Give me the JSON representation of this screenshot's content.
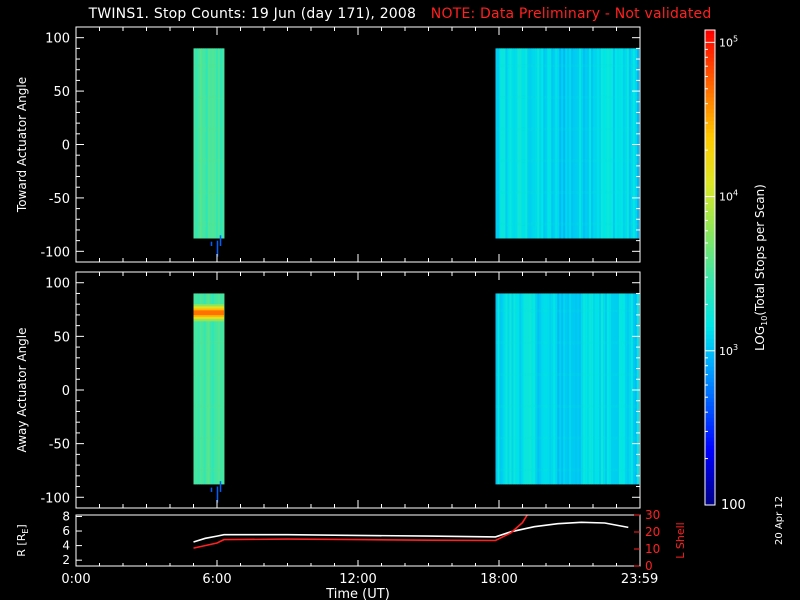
{
  "title": {
    "main": "TWINS1. Stop Counts: 19 Jun (day 171), 2008",
    "note": "NOTE: Data Preliminary - Not validated"
  },
  "date_stamp": "20 Apr 12",
  "colors": {
    "background": "#000000",
    "note": "#ff2020",
    "axis": "#ffffff",
    "lshell_line": "#ff2020",
    "r_line": "#ffffff"
  },
  "chart_data": [
    {
      "type": "heatmap",
      "name": "toward",
      "ylabel": "Toward Actuator Angle",
      "ylim": [
        -110,
        110
      ],
      "yticks": [
        100,
        50,
        0,
        -50,
        -100
      ],
      "ytick_labels": [
        "100",
        "50",
        "0",
        "-50",
        "-100"
      ],
      "xlim_hours": [
        0,
        24
      ],
      "angle_range": [
        -88,
        90
      ],
      "blocks": [
        {
          "start_hour": 5.0,
          "end_hour": 6.3,
          "base_level": 3.48
        },
        {
          "start_hour": 17.85,
          "end_hour": 23.95,
          "base_level": 3.12
        }
      ],
      "hot_band": null
    },
    {
      "type": "heatmap",
      "name": "away",
      "ylabel": "Away Actuator Angle",
      "ylim": [
        -110,
        110
      ],
      "yticks": [
        100,
        50,
        0,
        -50,
        -100
      ],
      "ytick_labels": [
        "100",
        "50",
        "0",
        "-50",
        "-100"
      ],
      "xlim_hours": [
        0,
        24
      ],
      "angle_range": [
        -88,
        90
      ],
      "blocks": [
        {
          "start_hour": 5.0,
          "end_hour": 6.3,
          "base_level": 3.48
        },
        {
          "start_hour": 17.85,
          "end_hour": 23.95,
          "base_level": 3.12
        }
      ],
      "hot_band": {
        "start_hour": 5.0,
        "end_hour": 6.3,
        "angle_min": 64,
        "angle_max": 80,
        "level": 4.7
      }
    },
    {
      "type": "line",
      "name": "orbit",
      "xlabel": "Time (UT)",
      "xticks_hours": [
        0,
        6,
        12,
        18,
        23.983
      ],
      "xtick_labels": [
        "0:00",
        "6:00",
        "12:00",
        "18:00",
        "23:59"
      ],
      "left_axis": {
        "label": "R [R",
        "label_sub": "E",
        "label_end": "]",
        "ylim": [
          1.2,
          8.2
        ],
        "yticks": [
          2,
          4,
          6,
          8
        ],
        "ytick_labels": [
          "2",
          "4",
          "6",
          "8"
        ]
      },
      "right_axis": {
        "label": "L Shell",
        "ylim": [
          0,
          30
        ],
        "yticks": [
          0,
          10,
          20,
          30
        ],
        "ytick_labels": [
          "0",
          "10",
          "20",
          "30"
        ]
      },
      "series": [
        {
          "axis": "left",
          "x": [
            5.0,
            5.5,
            6.0,
            6.3,
            9,
            12,
            15,
            17.85,
            18.5,
            19.5,
            20.5,
            21.5,
            22.5,
            23.5
          ],
          "y": [
            4.5,
            5.0,
            5.3,
            5.5,
            5.5,
            5.4,
            5.3,
            5.2,
            5.9,
            6.6,
            7.0,
            7.2,
            7.1,
            6.5
          ]
        },
        {
          "axis": "right",
          "x": [
            5.0,
            6.0,
            6.3,
            9,
            12,
            15,
            17.85,
            18.5,
            19.0,
            19.2
          ],
          "y": [
            10.5,
            13.5,
            15.5,
            15.8,
            15.5,
            15.2,
            15.0,
            19.5,
            25.5,
            30
          ]
        }
      ]
    }
  ],
  "colorbar": {
    "label_pre": "LOG",
    "label_sub": "10",
    "label_post": "(Total Stops per Scan)",
    "range_log": [
      2,
      5.08
    ],
    "ticks": [
      {
        "level": 5,
        "base": "10",
        "exp": "5"
      },
      {
        "level": 4,
        "base": "10",
        "exp": "4"
      },
      {
        "level": 3,
        "base": "10",
        "exp": "3"
      }
    ],
    "bottom_label": "100"
  }
}
